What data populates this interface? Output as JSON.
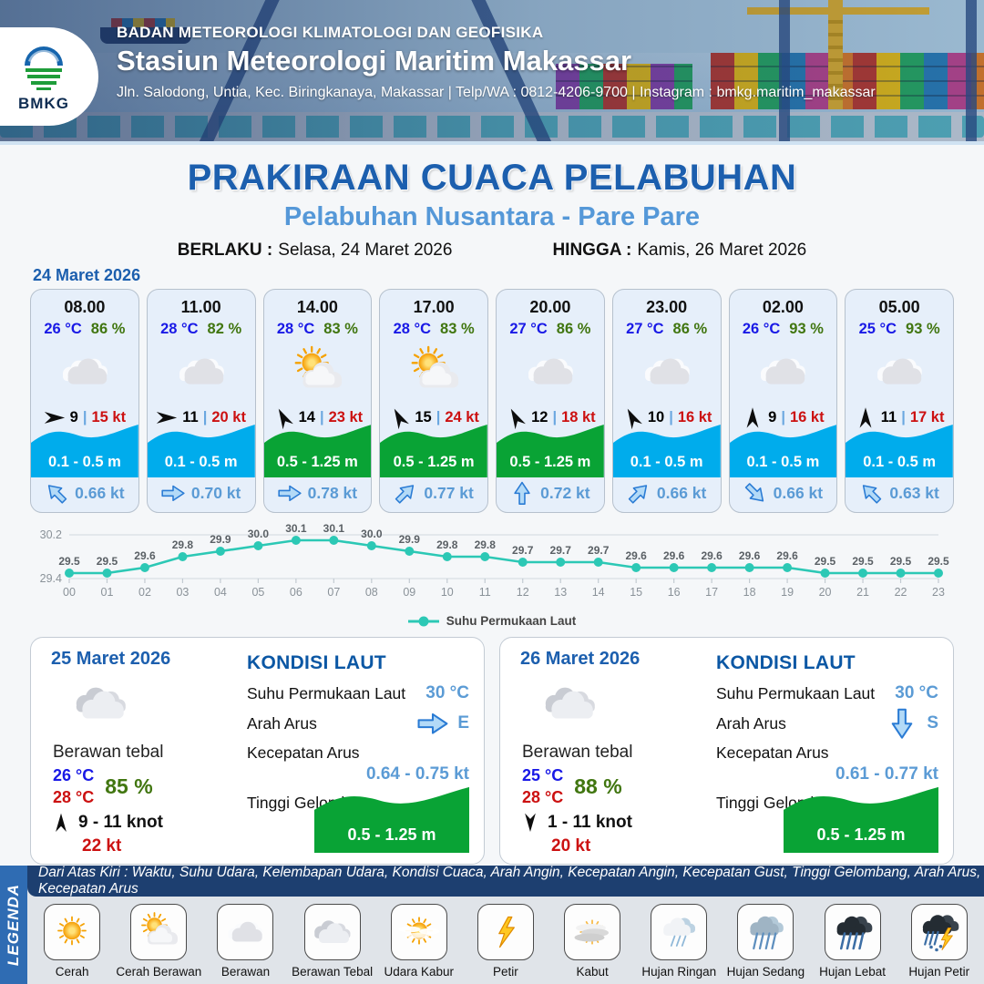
{
  "header": {
    "logo_text": "BMKG",
    "org": "BADAN METEOROLOGI KLIMATOLOGI DAN GEOFISIKA",
    "station": "Stasiun Meteorologi Maritim Makassar",
    "address": "Jln. Salodong, Untia, Kec. Biringkanaya, Makassar | Telp/WA : 0812-4206-9700 | Instagram : bmkg.maritim_makassar"
  },
  "title": {
    "main": "PRAKIRAAN CUACA PELABUHAN",
    "subtitle": "Pelabuhan Nusantara - Pare Pare",
    "berlaku_label": "BERLAKU :",
    "berlaku_value": "Selasa, 24 Maret 2026",
    "hingga_label": "HINGGA :",
    "hingga_value": "Kamis, 26 Maret 2026"
  },
  "forecast_date": "24 Maret 2026",
  "hourly_cards": [
    {
      "time": "08.00",
      "temp": "26 °C",
      "humidity": "86 %",
      "icon": "berawan",
      "wind_dir": "e",
      "wind_speed": "9",
      "gust": "15 kt",
      "wave": "0.1 - 0.5 m",
      "wave_color": "blue",
      "current_dir": "nw",
      "current_speed": "0.66 kt"
    },
    {
      "time": "11.00",
      "temp": "28 °C",
      "humidity": "82 %",
      "icon": "berawan",
      "wind_dir": "e",
      "wind_speed": "11",
      "gust": "20 kt",
      "wave": "0.1 - 0.5 m",
      "wave_color": "blue",
      "current_dir": "e",
      "current_speed": "0.70 kt"
    },
    {
      "time": "14.00",
      "temp": "28 °C",
      "humidity": "83 %",
      "icon": "cerah-berawan",
      "wind_dir": "nnw",
      "wind_speed": "14",
      "gust": "23 kt",
      "wave": "0.5 - 1.25 m",
      "wave_color": "green",
      "current_dir": "e",
      "current_speed": "0.78 kt"
    },
    {
      "time": "17.00",
      "temp": "28 °C",
      "humidity": "83 %",
      "icon": "cerah-berawan",
      "wind_dir": "nnw",
      "wind_speed": "15",
      "gust": "24 kt",
      "wave": "0.5 - 1.25 m",
      "wave_color": "green",
      "current_dir": "ne",
      "current_speed": "0.77 kt"
    },
    {
      "time": "20.00",
      "temp": "27 °C",
      "humidity": "86 %",
      "icon": "berawan",
      "wind_dir": "nnw",
      "wind_speed": "12",
      "gust": "18 kt",
      "wave": "0.5 - 1.25 m",
      "wave_color": "green",
      "current_dir": "n",
      "current_speed": "0.72 kt"
    },
    {
      "time": "23.00",
      "temp": "27 °C",
      "humidity": "86 %",
      "icon": "berawan",
      "wind_dir": "nnw",
      "wind_speed": "10",
      "gust": "16 kt",
      "wave": "0.1 - 0.5 m",
      "wave_color": "blue",
      "current_dir": "ne",
      "current_speed": "0.66 kt"
    },
    {
      "time": "02.00",
      "temp": "26 °C",
      "humidity": "93 %",
      "icon": "berawan",
      "wind_dir": "n",
      "wind_speed": "9",
      "gust": "16 kt",
      "wave": "0.1 - 0.5 m",
      "wave_color": "blue",
      "current_dir": "se",
      "current_speed": "0.66 kt"
    },
    {
      "time": "05.00",
      "temp": "25 °C",
      "humidity": "93 %",
      "icon": "berawan",
      "wind_dir": "n",
      "wind_speed": "11",
      "gust": "17 kt",
      "wave": "0.1 - 0.5 m",
      "wave_color": "blue",
      "current_dir": "nw",
      "current_speed": "0.63 kt"
    }
  ],
  "chart_data": {
    "type": "line",
    "x": [
      "00",
      "01",
      "02",
      "03",
      "04",
      "05",
      "06",
      "07",
      "08",
      "09",
      "10",
      "11",
      "12",
      "13",
      "14",
      "15",
      "16",
      "17",
      "18",
      "19",
      "20",
      "21",
      "22",
      "23"
    ],
    "values": [
      29.5,
      29.5,
      29.6,
      29.8,
      29.9,
      30.0,
      30.1,
      30.1,
      30.0,
      29.9,
      29.8,
      29.8,
      29.7,
      29.7,
      29.7,
      29.6,
      29.6,
      29.6,
      29.6,
      29.6,
      29.5,
      29.5,
      29.5,
      29.5
    ],
    "series_label": "Suhu Permukaan Laut",
    "ylim": [
      29.4,
      30.2
    ],
    "y_ticks": [
      "30.2",
      "29.4"
    ],
    "legend_position": "bottom",
    "line_color": "#2CC8B5"
  },
  "day_cards": [
    {
      "date": "25 Maret 2026",
      "icon": "berawan-tebal",
      "condition": "Berawan tebal",
      "temp_min": "26 °C",
      "temp_max": "28 °C",
      "humidity": "85 %",
      "wind_dir": "n",
      "wind_range": "9  - 11 knot",
      "gust": "22 kt",
      "sea": {
        "title": "KONDISI LAUT",
        "sst_label": "Suhu Permukaan Laut",
        "sst": "30 °C",
        "current_dir_label": "Arah Arus",
        "current_arrow": "e",
        "current_dir": "E",
        "current_speed_label": "Kecepatan Arus",
        "current_speed": "0.64  - 0.75 kt",
        "wave_label": "Tinggi Gelombang",
        "wave": "0.5 - 1.25 m"
      }
    },
    {
      "date": "26 Maret 2026",
      "icon": "berawan-tebal",
      "condition": "Berawan tebal",
      "temp_min": "25 °C",
      "temp_max": "28 °C",
      "humidity": "88 %",
      "wind_dir": "s",
      "wind_range": "1  - 11 knot",
      "gust": "20 kt",
      "sea": {
        "title": "KONDISI LAUT",
        "sst_label": "Suhu Permukaan Laut",
        "sst": "30 °C",
        "current_dir_label": "Arah Arus",
        "current_arrow": "s",
        "current_dir": "S",
        "current_speed_label": "Kecepatan Arus",
        "current_speed": "0.61  - 0.77 kt",
        "wave_label": "Tinggi Gelombang",
        "wave": "0.5 - 1.25 m"
      }
    }
  ],
  "legend": {
    "title": "LEGENDA",
    "description": "Dari Atas Kiri : Waktu, Suhu Udara, Kelembapan Udara, Kondisi Cuaca, Arah Angin, Kecepatan Angin, Kecepatan Gust, Tinggi Gelombang, Arah Arus, Kecepatan Arus",
    "items": [
      {
        "label": "Cerah",
        "icon": "cerah"
      },
      {
        "label": "Cerah Berawan",
        "icon": "cerah-berawan"
      },
      {
        "label": "Berawan",
        "icon": "berawan"
      },
      {
        "label": "Berawan Tebal",
        "icon": "berawan-tebal"
      },
      {
        "label": "Udara Kabur",
        "icon": "udara-kabur"
      },
      {
        "label": "Petir",
        "icon": "petir"
      },
      {
        "label": "Kabut",
        "icon": "kabut"
      },
      {
        "label": "Hujan Ringan",
        "icon": "hujan-ringan"
      },
      {
        "label": "Hujan Sedang",
        "icon": "hujan-sedang"
      },
      {
        "label": "Hujan Lebat",
        "icon": "hujan-lebat"
      },
      {
        "label": "Hujan Petir",
        "icon": "hujan-petir"
      }
    ]
  },
  "colors": {
    "wave_blue": "#00ACEC",
    "wave_green": "#09A335",
    "chart_line": "#2CC8B5",
    "title_blue": "#1C5FAE",
    "subtitle_blue": "#5598D8"
  }
}
